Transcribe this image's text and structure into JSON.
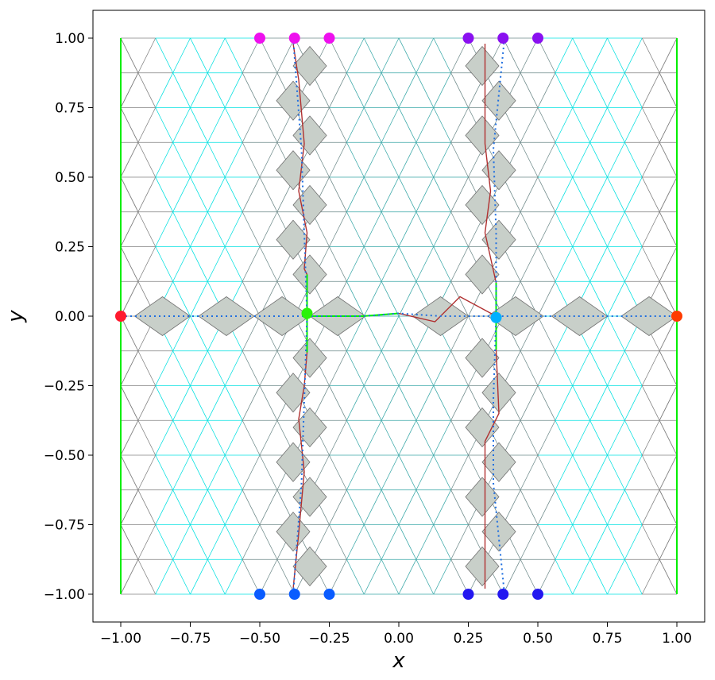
{
  "chart_data": {
    "type": "scatter",
    "title": "",
    "xlabel": "x",
    "ylabel": "y",
    "xlim": [
      -1.1,
      1.1
    ],
    "ylim": [
      -1.1,
      1.1
    ],
    "xticks": [
      -1.0,
      -0.75,
      -0.5,
      -0.25,
      0.0,
      0.25,
      0.5,
      0.75,
      1.0
    ],
    "yticks": [
      -1.0,
      -0.75,
      -0.5,
      -0.25,
      0.0,
      0.25,
      0.5,
      0.75,
      1.0
    ],
    "xtick_labels": [
      "−1.00",
      "−0.75",
      "−0.50",
      "−0.25",
      "0.00",
      "0.25",
      "0.50",
      "0.75",
      "1.00"
    ],
    "ytick_labels": [
      "−1.00",
      "−0.75",
      "−0.50",
      "−0.25",
      "0.00",
      "0.25",
      "0.50",
      "0.75",
      "1.00"
    ],
    "grid": false,
    "mesh": {
      "rows": 16,
      "row_spacing": 0.125,
      "columns": 16,
      "col_spacing": 0.125,
      "edge_colors": [
        "#00e0e0",
        "#3aa8a8",
        "#6e8a8a",
        "#808080"
      ]
    },
    "shaded_cells_color": "#c8cfc9",
    "boundary_lines": {
      "color": "#00ee00",
      "segments": [
        {
          "x": [
            -1.0,
            -1.0
          ],
          "y": [
            -1.0,
            1.0
          ]
        },
        {
          "x": [
            1.0,
            1.0
          ],
          "y": [
            -1.0,
            1.0
          ]
        },
        {
          "x": [
            -0.33,
            -0.33
          ],
          "y": [
            0.15,
            -0.13
          ]
        },
        {
          "x": [
            0.35,
            0.35
          ],
          "y": [
            0.12,
            -0.12
          ]
        },
        {
          "x": [
            -0.33,
            -0.13
          ],
          "y": [
            0.0,
            0.0
          ]
        },
        {
          "x": [
            -0.13,
            0.0
          ],
          "y": [
            0.0,
            0.01
          ]
        }
      ]
    },
    "interface_lines": {
      "color": "#b03030",
      "segments": [
        {
          "x": [
            -0.38,
            -0.36,
            -0.34,
            -0.36,
            -0.33,
            -0.34,
            -0.33
          ],
          "y": [
            0.98,
            0.85,
            0.62,
            0.45,
            0.3,
            0.17,
            0.15
          ]
        },
        {
          "x": [
            -0.33,
            -0.34,
            -0.36,
            -0.34,
            -0.36,
            -0.38
          ],
          "y": [
            -0.13,
            -0.25,
            -0.37,
            -0.56,
            -0.78,
            -0.98
          ]
        },
        {
          "x": [
            0.35,
            0.31,
            0.33,
            0.31,
            0.31
          ],
          "y": [
            0.12,
            0.3,
            0.45,
            0.62,
            0.98
          ]
        },
        {
          "x": [
            0.35,
            0.36,
            0.31,
            0.31,
            0.31
          ],
          "y": [
            -0.12,
            -0.35,
            -0.45,
            -0.62,
            -0.98
          ]
        },
        {
          "x": [
            0.0,
            0.13,
            0.22,
            0.35
          ],
          "y": [
            0.01,
            -0.02,
            0.07,
            0.0
          ]
        }
      ]
    },
    "dotted_paths": {
      "color": "#1f6fe0",
      "segments": [
        {
          "x": [
            -1.0,
            -0.33,
            -0.13,
            0.0,
            0.15,
            0.35,
            1.0
          ],
          "y": [
            0.0,
            0.0,
            0.0,
            0.01,
            0.0,
            0.0,
            0.0
          ]
        },
        {
          "x": [
            -0.38,
            -0.35,
            -0.34,
            -0.33
          ],
          "y": [
            1.0,
            0.6,
            0.3,
            0.0
          ]
        },
        {
          "x": [
            -0.33,
            -0.34,
            -0.35,
            -0.38
          ],
          "y": [
            0.0,
            -0.3,
            -0.6,
            -1.0
          ]
        },
        {
          "x": [
            0.38,
            0.34,
            0.35,
            0.35
          ],
          "y": [
            1.0,
            0.6,
            0.3,
            0.0
          ]
        },
        {
          "x": [
            0.35,
            0.34,
            0.34,
            0.38
          ],
          "y": [
            0.0,
            -0.3,
            -0.6,
            -1.0
          ]
        }
      ]
    },
    "markers": [
      {
        "x": -1.0,
        "y": 0.0,
        "color": "#ff1a2e"
      },
      {
        "x": 1.0,
        "y": 0.0,
        "color": "#ff3b00"
      },
      {
        "x": -0.33,
        "y": 0.01,
        "color": "#2af20a"
      },
      {
        "x": 0.35,
        "y": -0.005,
        "color": "#00b0ff"
      },
      {
        "x": -0.5,
        "y": 1.0,
        "color": "#ee10ee"
      },
      {
        "x": -0.375,
        "y": 1.0,
        "color": "#ee10ee"
      },
      {
        "x": -0.25,
        "y": 1.0,
        "color": "#ee10ee"
      },
      {
        "x": 0.25,
        "y": 1.0,
        "color": "#8a10f0"
      },
      {
        "x": 0.375,
        "y": 1.0,
        "color": "#8a10f0"
      },
      {
        "x": 0.5,
        "y": 1.0,
        "color": "#8a10f0"
      },
      {
        "x": -0.5,
        "y": -1.0,
        "color": "#0a5cff"
      },
      {
        "x": -0.375,
        "y": -1.0,
        "color": "#0a5cff"
      },
      {
        "x": -0.25,
        "y": -1.0,
        "color": "#0a5cff"
      },
      {
        "x": 0.25,
        "y": -1.0,
        "color": "#2418f0"
      },
      {
        "x": 0.375,
        "y": -1.0,
        "color": "#2418f0"
      },
      {
        "x": 0.5,
        "y": -1.0,
        "color": "#2418f0"
      }
    ]
  }
}
